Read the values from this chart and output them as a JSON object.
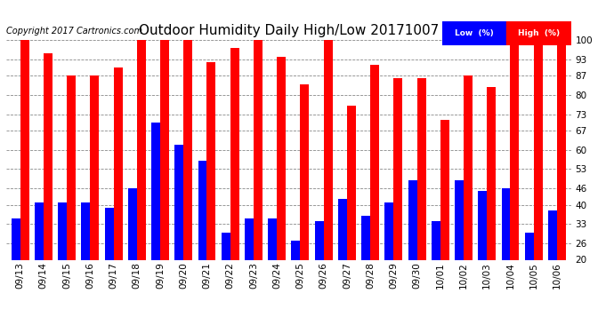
{
  "title": "Outdoor Humidity Daily High/Low 20171007",
  "copyright": "Copyright 2017 Cartronics.com",
  "background_color": "#ffffff",
  "plot_bg_color": "#ffffff",
  "grid_color": "#888888",
  "bar_width": 0.38,
  "ylim": [
    20,
    100
  ],
  "yticks": [
    20,
    26,
    33,
    40,
    46,
    53,
    60,
    67,
    73,
    80,
    87,
    93,
    100
  ],
  "dates": [
    "09/13",
    "09/14",
    "09/15",
    "09/16",
    "09/17",
    "09/18",
    "09/19",
    "09/20",
    "09/21",
    "09/22",
    "09/23",
    "09/24",
    "09/25",
    "09/26",
    "09/27",
    "09/28",
    "09/29",
    "09/30",
    "10/01",
    "10/02",
    "10/03",
    "10/04",
    "10/05",
    "10/06"
  ],
  "high": [
    100,
    95,
    87,
    87,
    90,
    100,
    100,
    100,
    92,
    97,
    100,
    94,
    84,
    100,
    76,
    91,
    86,
    86,
    71,
    87,
    83,
    100,
    100,
    100
  ],
  "low": [
    35,
    41,
    41,
    41,
    39,
    46,
    70,
    62,
    56,
    30,
    35,
    35,
    27,
    34,
    42,
    36,
    41,
    49,
    34,
    49,
    45,
    46,
    30,
    38
  ],
  "high_color": "#ff0000",
  "low_color": "#0000ff",
  "legend_high_label": "High  (%)",
  "legend_low_label": "Low  (%)",
  "title_fontsize": 11,
  "tick_fontsize": 7.5,
  "copyright_fontsize": 7
}
